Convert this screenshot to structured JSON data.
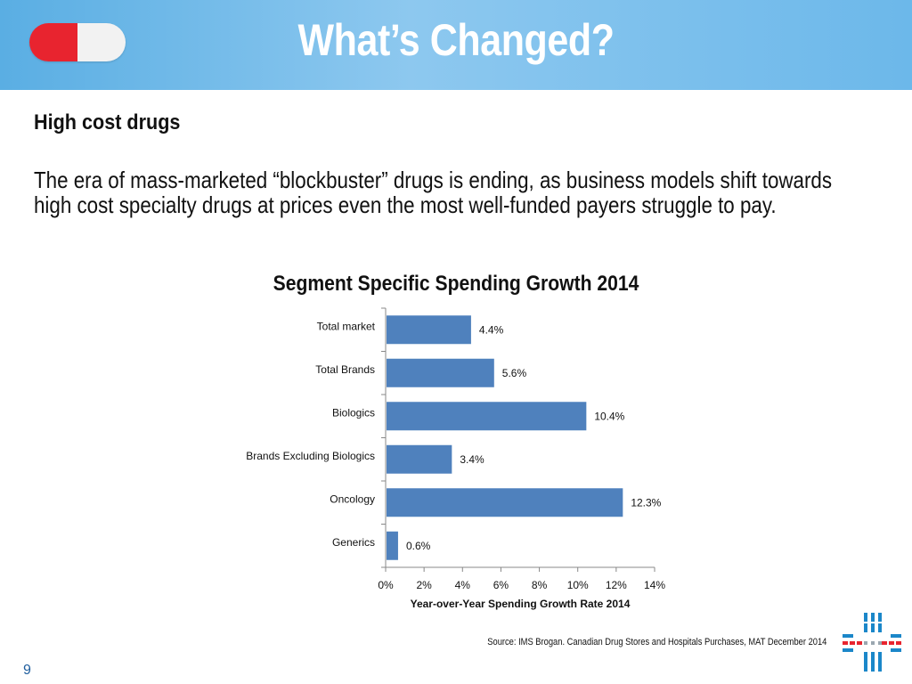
{
  "header": {
    "title": "What’s Changed?"
  },
  "subheading": "High cost drugs",
  "body_text": "The era of mass-marketed “blockbuster” drugs is ending, as business models shift towards high cost specialty drugs at prices even the most well-funded payers struggle to pay.",
  "chart_data": {
    "type": "bar",
    "orientation": "horizontal",
    "title": "Segment Specific Spending Growth 2014",
    "categories": [
      "Total market",
      "Total Brands",
      "Biologics",
      "Brands Excluding Biologics",
      "Oncology",
      "Generics"
    ],
    "values": [
      4.4,
      5.6,
      10.4,
      3.4,
      12.3,
      0.6
    ],
    "value_labels": [
      "4.4%",
      "5.6%",
      "10.4%",
      "3.4%",
      "12.3%",
      "0.6%"
    ],
    "xlabel": "Year-over-Year Spending Growth Rate 2014",
    "ylabel": "",
    "xlim": [
      0,
      14
    ],
    "xticks": [
      0,
      2,
      4,
      6,
      8,
      10,
      12,
      14
    ],
    "xtick_labels": [
      "0%",
      "2%",
      "4%",
      "6%",
      "8%",
      "10%",
      "12%",
      "14%"
    ],
    "bar_color": "#4f81bd",
    "grid": false
  },
  "footer": {
    "source": "Source: IMS Brogan. Canadian Drug Stores and Hospitals Purchases, MAT December 2014",
    "page_number": "9"
  },
  "colors": {
    "header_blue": "#6cb8ea",
    "pill_red": "#e8242f",
    "logo_blue": "#1b87c9",
    "logo_red": "#e8242f"
  }
}
